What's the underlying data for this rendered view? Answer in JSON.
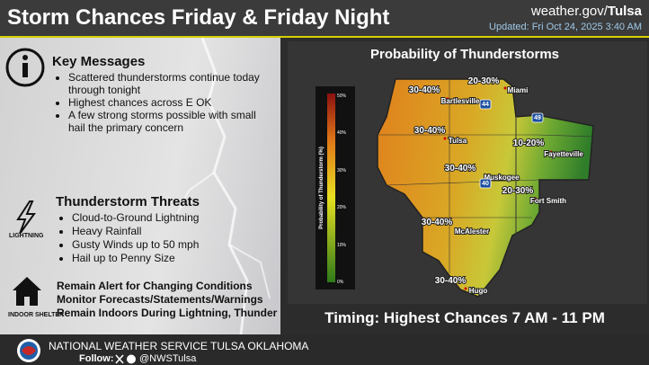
{
  "header": {
    "title": "Storm Chances Friday & Friday Night",
    "site": "weather.gov/",
    "office": "Tulsa",
    "updated": "Updated: Fri Oct 24, 2025 3:40 AM"
  },
  "key_messages": {
    "title": "Key Messages",
    "items": [
      "Scattered thunderstorms continue today through tonight",
      "Highest chances across E OK",
      "A few strong storms possible with small hail the primary concern"
    ]
  },
  "threats": {
    "title": "Thunderstorm Threats",
    "icon_label": "LIGHTNING",
    "items": [
      "Cloud-to-Ground Lightning",
      "Heavy Rainfall",
      "Gusty Winds up to 50 mph",
      "Hail up to Penny Size"
    ]
  },
  "alerts": {
    "icon_label": "INDOOR SHELTER",
    "lines": [
      "Remain Alert for Changing Conditions",
      "Monitor Forecasts/Statements/Warnings",
      "Remain Indoors During Lightning, Thunder"
    ]
  },
  "map": {
    "title": "Probability of Thunderstorms",
    "legend_label": "Probability of Thunderstorm (%)",
    "legend_ticks": [
      "50%",
      "40%",
      "30%",
      "20%",
      "10%",
      "0%"
    ],
    "area_labels": [
      "30-40%",
      "20-30%",
      "30-40%",
      "10-20%",
      "30-40%",
      "20-30%",
      "30-40%",
      "30-40%"
    ],
    "cities": [
      "Miami",
      "Bartlesville",
      "Tulsa",
      "Fayetteville",
      "Muskogee",
      "Fort Smith",
      "McAlester",
      "Hugo"
    ],
    "highways": [
      "44",
      "40",
      "49"
    ]
  },
  "timing": "Timing: Highest Chances 7 AM - 11 PM",
  "footer": {
    "agency": "NATIONAL WEATHER SERVICE TULSA OKLAHOMA",
    "follow": "Follow:",
    "handle": "@NWSTulsa"
  }
}
